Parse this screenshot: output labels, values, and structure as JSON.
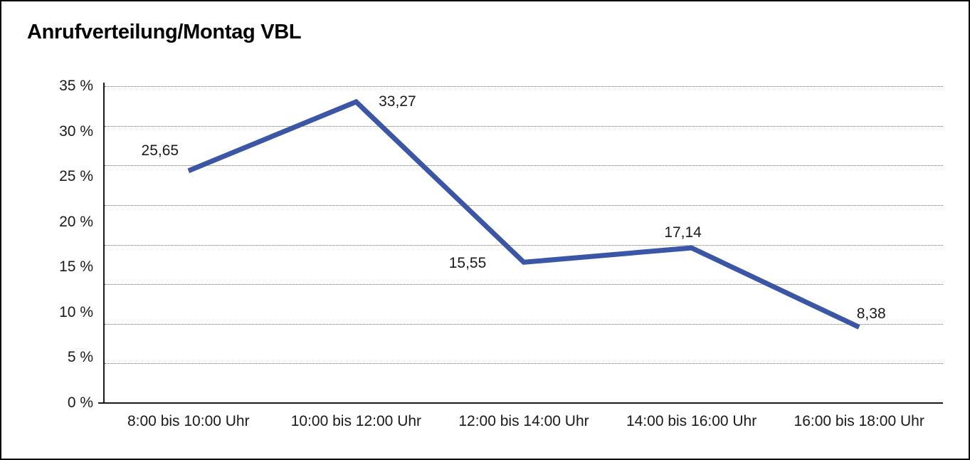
{
  "window": {
    "background": "#ffffff",
    "border_color": "#000000"
  },
  "chart_data": {
    "type": "line",
    "title": "Anrufverteilung/Montag VBL",
    "categories": [
      "8:00 bis 10:00 Uhr",
      "10:00 bis 12:00 Uhr",
      "12:00 bis 14:00 Uhr",
      "14:00 bis 16:00 Uhr",
      "16:00 bis 18:00 Uhr"
    ],
    "values": [
      25.65,
      33.27,
      15.55,
      17.14,
      8.38
    ],
    "value_labels": [
      "25,65",
      "33,27",
      "15,55",
      "17,14",
      "8,38"
    ],
    "y_tick_labels": [
      "35 %",
      "30 %",
      "25 %",
      "20 %",
      "15 %",
      "10 %",
      "5 %",
      "0 %"
    ],
    "ylim": [
      0,
      35
    ],
    "xlabel": "",
    "ylabel": "",
    "grid": "horizontal-dotted",
    "gridline_count": 9,
    "legend": "none",
    "line_color": "#3A56A5",
    "line_width": 7
  }
}
